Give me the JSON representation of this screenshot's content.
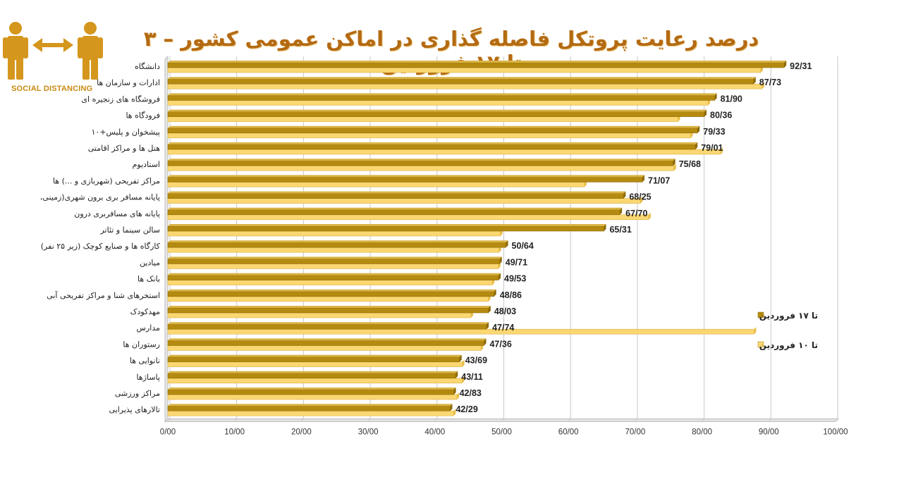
{
  "title": "درصد رعایت پروتکل فاصله گذاری در اماکن عمومی کشور – ۳ تا ۱۷ فروردین",
  "logo_text": "SOCIAL DISTANCING",
  "colors": {
    "title": "#b46a12",
    "series_dark": "#b48a10",
    "series_light": "#fbd771",
    "logo": "#d4961c",
    "grid": "#c8c8c8"
  },
  "chart_data": {
    "type": "bar",
    "orientation": "horizontal",
    "title": "درصد رعایت پروتکل فاصله گذاری در اماکن عمومی کشور – ۳ تا ۱۷ فروردین",
    "categories": [
      "دانشگاه",
      "ادارات و سازمان ها",
      "فروشگاه های زنجیره ای",
      "فرودگاه ها",
      "پیشخوان و پلیس+۱۰",
      "هتل ها و مراکز اقامتی",
      "استادیوم",
      "مراکز تفریحی (شهربازی و ...) ها",
      "پایانه مسافر بری برون شهری(زمینی،",
      "پایانه های مسافربری درون",
      "سالن سینما و تئاتر",
      "کارگاه ها و صنایع کوچک (زیر ۲۵ نفر)",
      "میادین",
      "بانک ها",
      "استخرهای شنا و مراکز تفریحی آبی",
      "مهدکودک",
      "مدارس",
      "رستوران ها",
      "نانوایی ها",
      "پاساژها",
      "مراکز ورزشی",
      "تالارهای پذیرایی"
    ],
    "value_labels": [
      "92/31",
      "87/73",
      "81/90",
      "80/36",
      "79/33",
      "79/01",
      "75/68",
      "71/07",
      "68/25",
      "67/70",
      "65/31",
      "50/64",
      "49/71",
      "49/53",
      "48/86",
      "48/03",
      "47/74",
      "47/36",
      "43/69",
      "43/11",
      "42/83",
      "42/29"
    ],
    "series": [
      {
        "name": "تا ۱۷ فروردین",
        "values": [
          92.31,
          87.73,
          81.9,
          80.36,
          79.33,
          79.01,
          75.68,
          71.07,
          68.25,
          67.7,
          65.31,
          50.64,
          49.71,
          49.53,
          48.86,
          48.03,
          47.74,
          47.36,
          43.69,
          43.11,
          42.83,
          42.29
        ]
      },
      {
        "name": "تا ۱۰ فروردین",
        "values": [
          88.8,
          89.0,
          80.9,
          76.4,
          78.3,
          82.8,
          75.8,
          62.4,
          70.8,
          72.0,
          49.8,
          49.6,
          49.5,
          48.6,
          48.0,
          45.4,
          87.8,
          46.9,
          44.1,
          44.1,
          43.3,
          42.8
        ]
      }
    ],
    "x_ticks": [
      "0/00",
      "10/00",
      "20/00",
      "30/00",
      "40/00",
      "50/00",
      "60/00",
      "70/00",
      "80/00",
      "90/00",
      "100/00"
    ],
    "xlim": [
      0,
      100
    ],
    "grid": true,
    "legend_position": "right"
  }
}
